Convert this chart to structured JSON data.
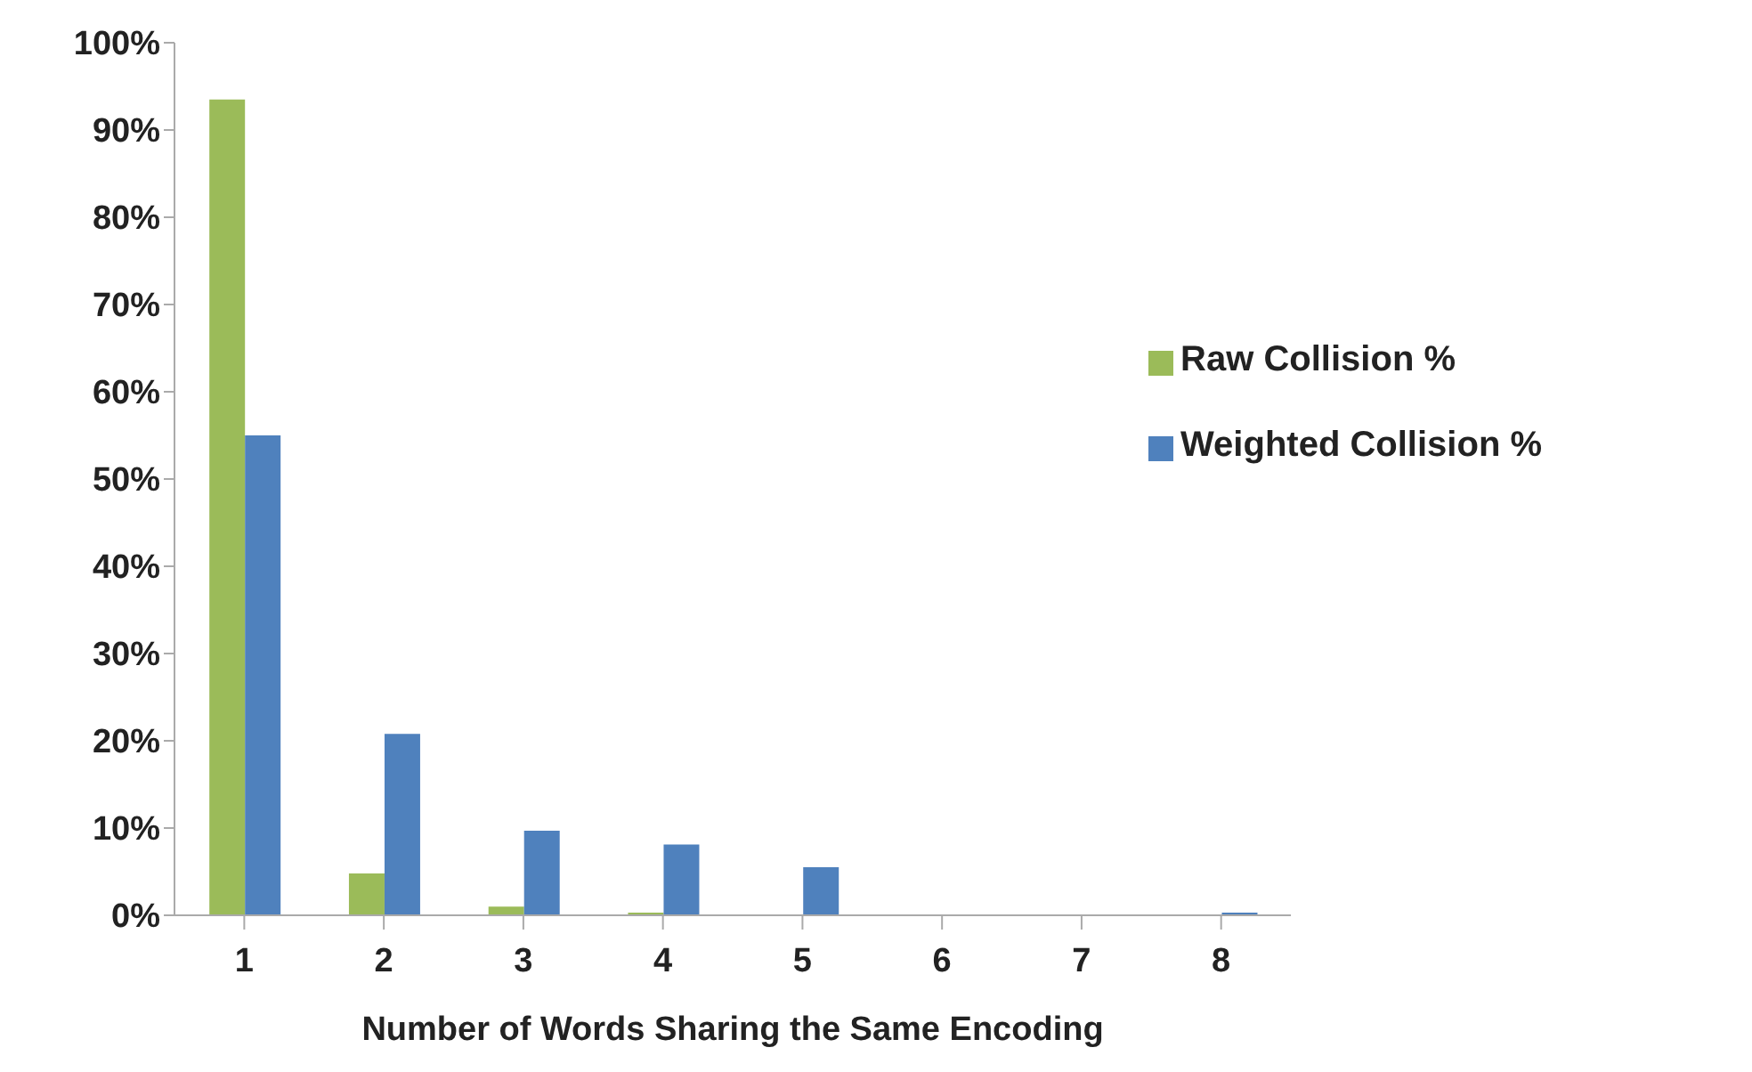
{
  "chart_data": {
    "type": "bar",
    "xlabel": "Number of  Words Sharing the Same Encoding",
    "categories": [
      "1",
      "2",
      "3",
      "4",
      "5",
      "6",
      "7",
      "8"
    ],
    "series": [
      {
        "name": "Raw Collision %",
        "color": "#9bbb59",
        "values": [
          93.5,
          4.8,
          1.0,
          0.3,
          0,
          0,
          0,
          0
        ]
      },
      {
        "name": "Weighted Collision %",
        "color": "#4f81bd",
        "values": [
          55,
          20.8,
          9.7,
          8.1,
          5.5,
          null,
          null,
          0.3
        ]
      }
    ],
    "ylim": [
      0,
      100
    ],
    "yticks": [
      {
        "value": 0,
        "label": "0%"
      },
      {
        "value": 10,
        "label": "10%"
      },
      {
        "value": 20,
        "label": "20%"
      },
      {
        "value": 30,
        "label": "30%"
      },
      {
        "value": 40,
        "label": "40%"
      },
      {
        "value": 50,
        "label": "50%"
      },
      {
        "value": 60,
        "label": "60%"
      },
      {
        "value": 70,
        "label": "70%"
      },
      {
        "value": 80,
        "label": "80%"
      },
      {
        "value": 90,
        "label": "90%"
      },
      {
        "value": 100,
        "label": "100%"
      }
    ],
    "grid": false,
    "legend": "right"
  }
}
